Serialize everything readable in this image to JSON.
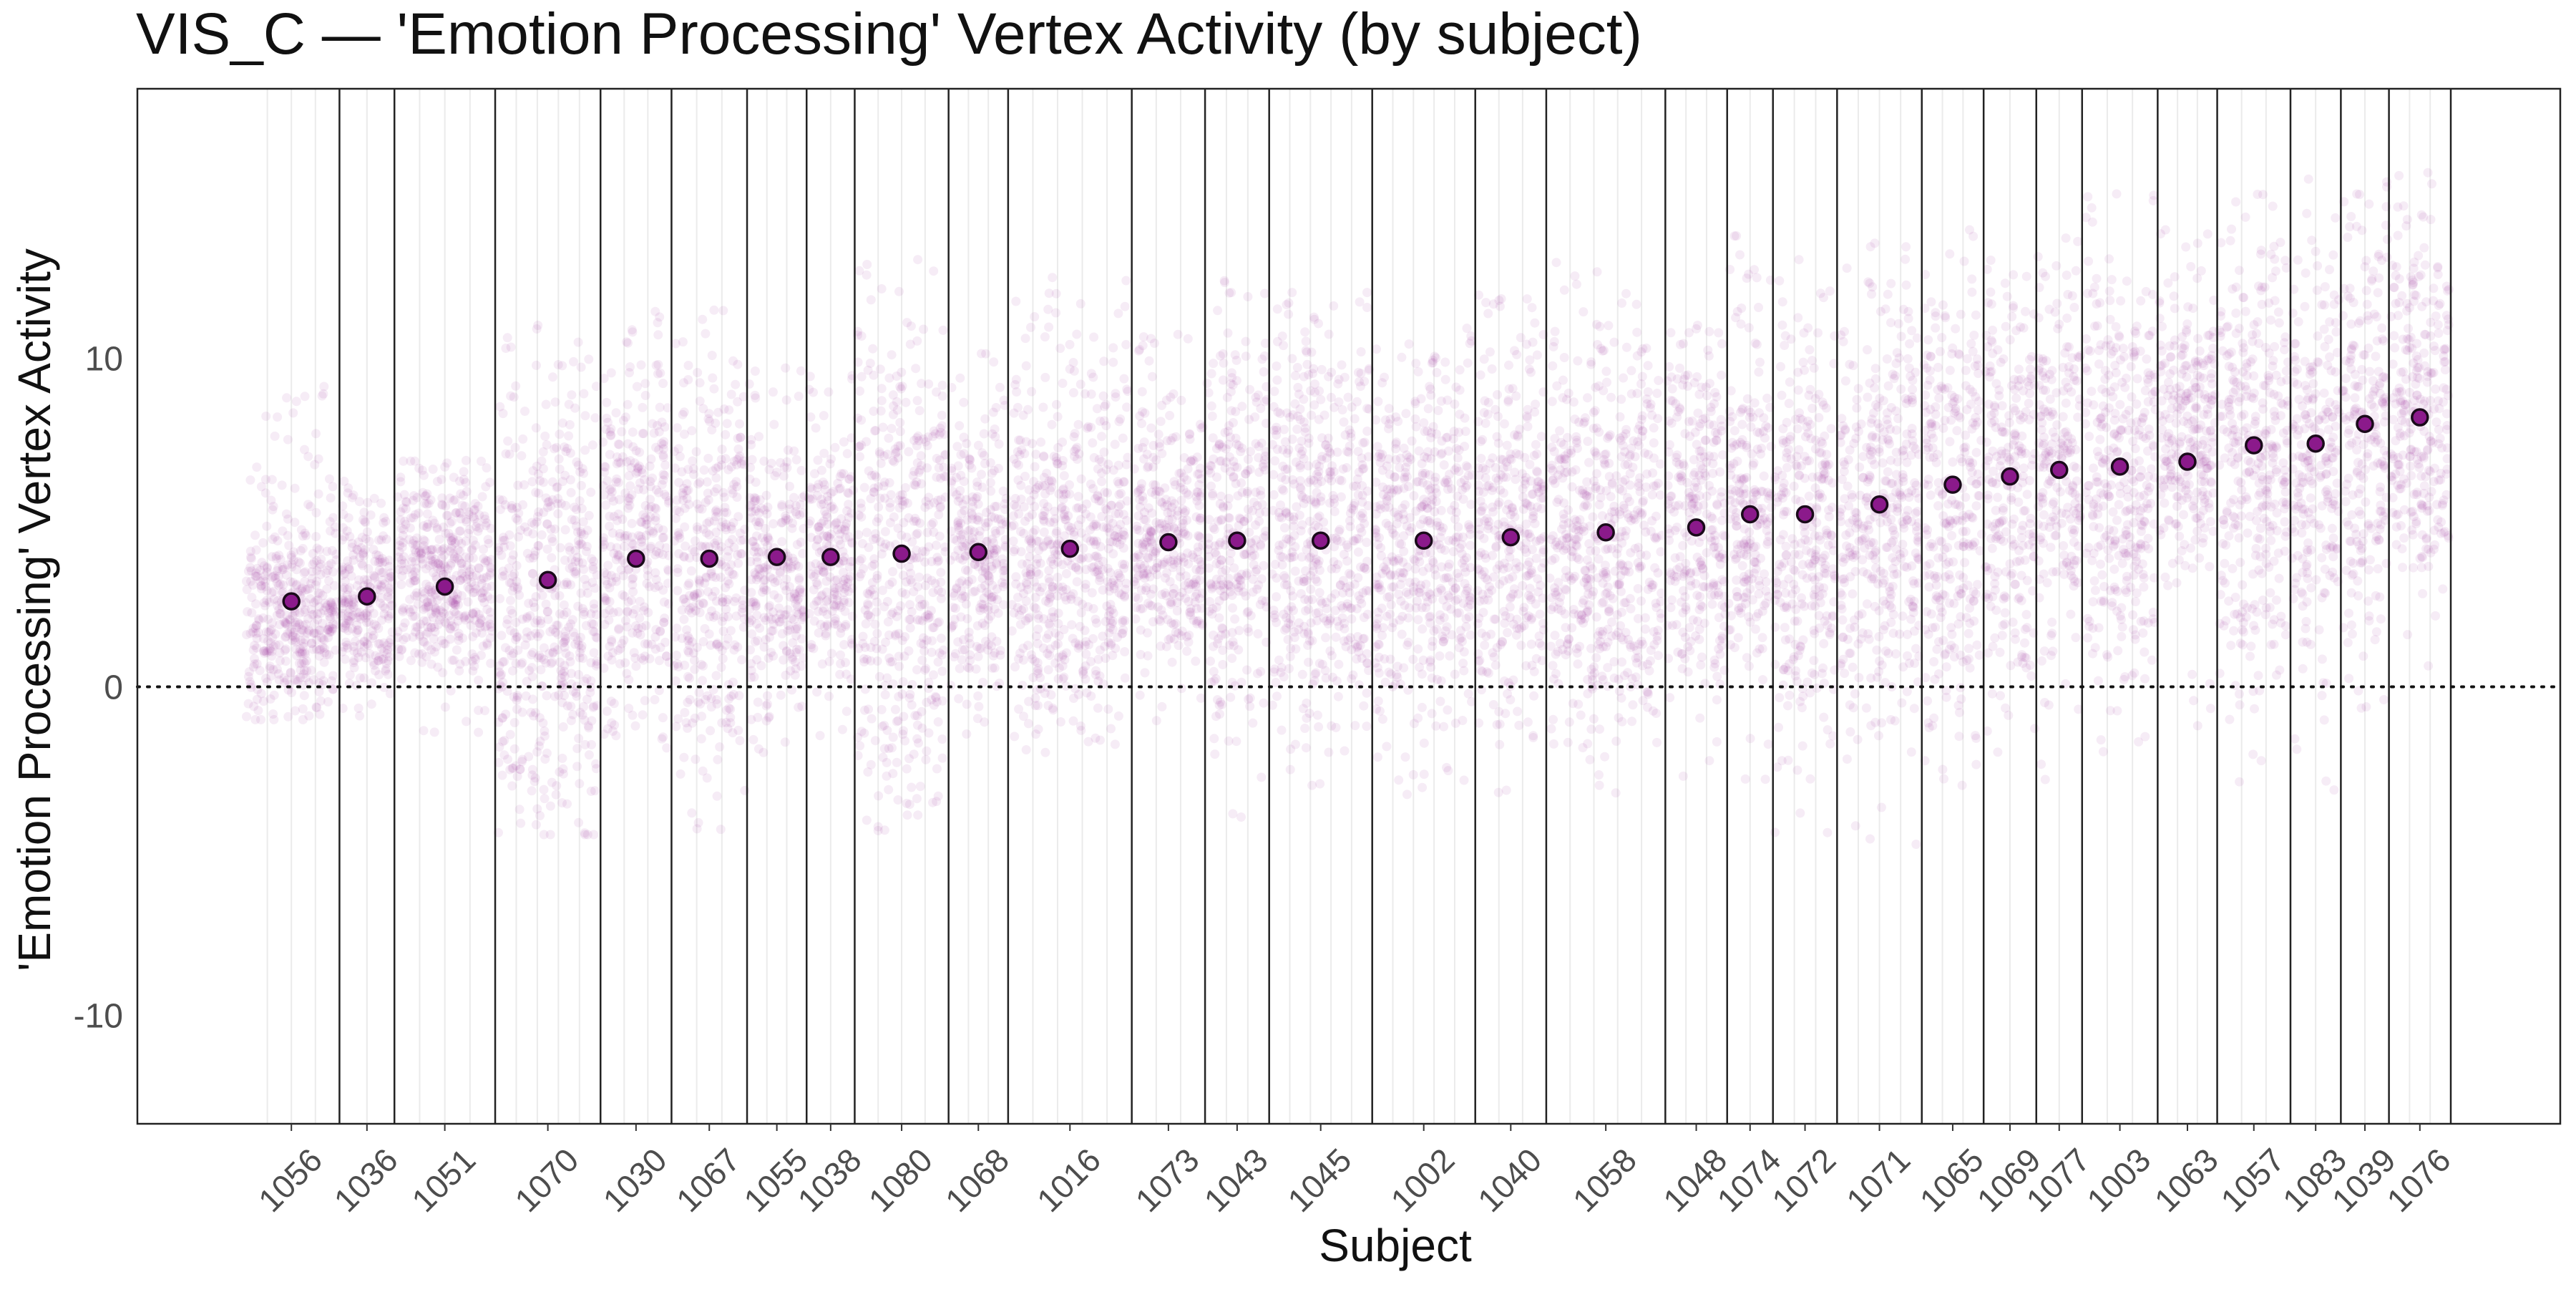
{
  "chart_data": {
    "type": "scatter",
    "title": "VIS_C — 'Emotion Processing' Vertex Activity (by subject)",
    "xlabel": "Subject",
    "ylabel": "'Emotion Processing' Vertex Activity",
    "ylim": [
      -13.3,
      18.2
    ],
    "yticks": [
      -10,
      0,
      10
    ],
    "reference_line": 0,
    "grid": false,
    "colors": {
      "points": "#9e2a9e",
      "mean_fill": "#8b1a8b",
      "mean_stroke": "#1a0a1a",
      "divider": "#222222",
      "panel_border": "#222222",
      "faint_grid": "#ebebeb",
      "title": "#111111",
      "tick_label": "#4d4d4d"
    },
    "subjects": [
      {
        "id": "1056",
        "start": 0,
        "end": 2.1,
        "mean": 2.6,
        "lo": -1.0,
        "hi": 9.2,
        "core_lo": -0.2,
        "core_hi": 4.5
      },
      {
        "id": "1036",
        "start": 2.1,
        "end": 3.3,
        "mean": 2.75,
        "lo": -1.5,
        "hi": 6.5,
        "core_lo": 0.8,
        "core_hi": 4.5
      },
      {
        "id": "1051",
        "start": 3.3,
        "end": 5.5,
        "mean": 3.05,
        "lo": -1.5,
        "hi": 7.0,
        "core_lo": 1.0,
        "core_hi": 5.6
      },
      {
        "id": "1070",
        "start": 5.5,
        "end": 7.8,
        "mean": 3.25,
        "lo": -4.5,
        "hi": 11.0,
        "core_lo": -2.5,
        "core_hi": 7.8
      },
      {
        "id": "1030",
        "start": 7.8,
        "end": 9.35,
        "mean": 3.9,
        "lo": -2.0,
        "hi": 11.5,
        "core_lo": 0.0,
        "core_hi": 8.0
      },
      {
        "id": "1067",
        "start": 9.35,
        "end": 11.0,
        "mean": 3.9,
        "lo": -4.8,
        "hi": 12.5,
        "core_lo": -1.0,
        "core_hi": 8.5
      },
      {
        "id": "1055",
        "start": 11.0,
        "end": 12.3,
        "mean": 3.95,
        "lo": -2.0,
        "hi": 10.0,
        "core_lo": 0.5,
        "core_hi": 6.5
      },
      {
        "id": "1038",
        "start": 12.3,
        "end": 13.35,
        "mean": 3.95,
        "lo": -1.5,
        "hi": 9.5,
        "core_lo": 1.0,
        "core_hi": 6.5
      },
      {
        "id": "1080",
        "start": 13.35,
        "end": 15.4,
        "mean": 4.05,
        "lo": -4.8,
        "hi": 13.0,
        "core_lo": -2.0,
        "core_hi": 9.5
      },
      {
        "id": "1068",
        "start": 15.4,
        "end": 16.7,
        "mean": 4.1,
        "lo": -1.5,
        "hi": 10.5,
        "core_lo": 1.0,
        "core_hi": 7.0
      },
      {
        "id": "1016",
        "start": 16.7,
        "end": 19.4,
        "mean": 4.2,
        "lo": -2.0,
        "hi": 12.5,
        "core_lo": 0.0,
        "core_hi": 8.0
      },
      {
        "id": "1073",
        "start": 19.4,
        "end": 21.0,
        "mean": 4.4,
        "lo": -1.5,
        "hi": 11.0,
        "core_lo": 1.5,
        "core_hi": 7.5
      },
      {
        "id": "1043",
        "start": 21.0,
        "end": 22.4,
        "mean": 4.45,
        "lo": -4.5,
        "hi": 12.5,
        "core_lo": 0.0,
        "core_hi": 9.0
      },
      {
        "id": "1045",
        "start": 22.4,
        "end": 24.65,
        "mean": 4.45,
        "lo": -3.0,
        "hi": 12.0,
        "core_lo": 0.0,
        "core_hi": 9.5
      },
      {
        "id": "1002",
        "start": 24.65,
        "end": 26.9,
        "mean": 4.45,
        "lo": -3.5,
        "hi": 11.0,
        "core_lo": 0.0,
        "core_hi": 8.5
      },
      {
        "id": "1040",
        "start": 26.9,
        "end": 28.45,
        "mean": 4.55,
        "lo": -3.5,
        "hi": 12.0,
        "core_lo": 0.5,
        "core_hi": 8.5
      },
      {
        "id": "1058",
        "start": 28.45,
        "end": 31.05,
        "mean": 4.7,
        "lo": -3.5,
        "hi": 13.5,
        "core_lo": 0.0,
        "core_hi": 9.0
      },
      {
        "id": "1048",
        "start": 31.05,
        "end": 32.4,
        "mean": 4.85,
        "lo": -3.0,
        "hi": 11.0,
        "core_lo": 1.0,
        "core_hi": 9.0
      },
      {
        "id": "1074",
        "start": 32.4,
        "end": 33.4,
        "mean": 5.25,
        "lo": -3.0,
        "hi": 14.0,
        "core_lo": 1.5,
        "core_hi": 8.5
      },
      {
        "id": "1072",
        "start": 33.4,
        "end": 34.8,
        "mean": 5.25,
        "lo": -4.5,
        "hi": 13.0,
        "core_lo": 0.5,
        "core_hi": 9.5
      },
      {
        "id": "1071",
        "start": 34.8,
        "end": 36.65,
        "mean": 5.55,
        "lo": -5.0,
        "hi": 13.5,
        "core_lo": 0.0,
        "core_hi": 10.0
      },
      {
        "id": "1065",
        "start": 36.65,
        "end": 38.0,
        "mean": 6.15,
        "lo": -3.0,
        "hi": 14.0,
        "core_lo": 0.5,
        "core_hi": 10.5
      },
      {
        "id": "1069",
        "start": 38.0,
        "end": 39.15,
        "mean": 6.4,
        "lo": -3.0,
        "hi": 13.5,
        "core_lo": 1.0,
        "core_hi": 11.0
      },
      {
        "id": "1077",
        "start": 39.15,
        "end": 40.15,
        "mean": 6.6,
        "lo": -3.0,
        "hi": 14.0,
        "core_lo": 3.0,
        "core_hi": 11.0
      },
      {
        "id": "1003",
        "start": 40.15,
        "end": 41.8,
        "mean": 6.7,
        "lo": -2.0,
        "hi": 15.0,
        "core_lo": 1.5,
        "core_hi": 11.0
      },
      {
        "id": "1063",
        "start": 41.8,
        "end": 43.1,
        "mean": 6.85,
        "lo": -2.0,
        "hi": 14.0,
        "core_lo": 4.5,
        "core_hi": 11.0
      },
      {
        "id": "1057",
        "start": 43.1,
        "end": 44.7,
        "mean": 7.35,
        "lo": -3.0,
        "hi": 15.5,
        "core_lo": 2.0,
        "core_hi": 12.0
      },
      {
        "id": "1083",
        "start": 44.7,
        "end": 45.8,
        "mean": 7.4,
        "lo": -3.5,
        "hi": 15.5,
        "core_lo": 2.0,
        "core_hi": 11.0
      },
      {
        "id": "1039",
        "start": 45.8,
        "end": 46.85,
        "mean": 8.0,
        "lo": -2.0,
        "hi": 15.5,
        "core_lo": 3.5,
        "core_hi": 12.5
      },
      {
        "id": "1076",
        "start": 46.85,
        "end": 48.2,
        "mean": 8.2,
        "lo": -2.0,
        "hi": 16.0,
        "core_lo": 4.0,
        "core_hi": 12.5
      }
    ]
  }
}
